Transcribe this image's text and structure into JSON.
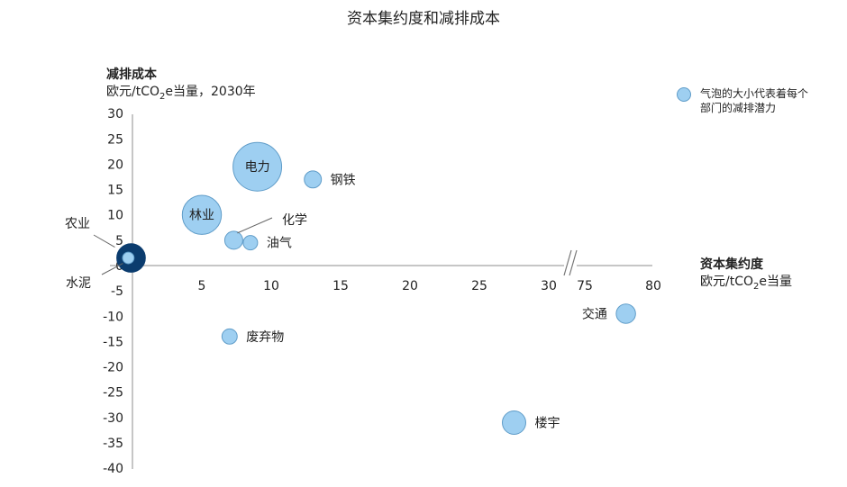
{
  "chart_data": {
    "type": "scatter",
    "title": "资本集约度和减排成本",
    "y_axis": {
      "title": "减排成本",
      "unit_prefix": "欧元/tCO",
      "unit_sub": "2",
      "unit_suffix": "e当量，2030年",
      "range": [
        -40,
        30
      ],
      "ticks": [
        30,
        25,
        20,
        15,
        10,
        5,
        0,
        -5,
        -10,
        -15,
        -20,
        -25,
        -30,
        -35,
        -40
      ],
      "tick_labels": [
        "30",
        "25",
        "20",
        "15",
        "10",
        "5",
        "0",
        "-5",
        "-10",
        "-15",
        "-20",
        "-25",
        "-30",
        "-35",
        "-40"
      ]
    },
    "x_axis": {
      "title": "资本集约度",
      "unit_prefix": "欧元/tCO",
      "unit_sub": "2",
      "unit_suffix": "e当量",
      "range": [
        0,
        80
      ],
      "break_between": [
        30,
        75
      ],
      "ticks": [
        5,
        10,
        15,
        20,
        25,
        30,
        75,
        80
      ],
      "tick_labels": [
        "5",
        "10",
        "15",
        "20",
        "25",
        "30",
        "75",
        "80"
      ]
    },
    "legend": {
      "text_line1": "气泡的大小代表着每个",
      "text_line2": "部门的减排潜力",
      "position": "top-right"
    },
    "bubbles": [
      {
        "label": "电力",
        "x": 9,
        "y": 19.5,
        "size": 2.84,
        "color": "#9ecff1",
        "label_placement": "inside"
      },
      {
        "label": "林业",
        "x": 5,
        "y": 10,
        "size": 1.84,
        "color": "#9ecff1",
        "label_placement": "inside"
      },
      {
        "label": "钢铁",
        "x": 13,
        "y": 17,
        "size": 0.35,
        "color": "#9ecff1",
        "label_placement": "right"
      },
      {
        "label": "化学",
        "x": 7.3,
        "y": 5,
        "size": 0.39,
        "color": "#9ecff1",
        "label_placement": "upper-right-leader"
      },
      {
        "label": "油气",
        "x": 8.5,
        "y": 4.5,
        "size": 0.25,
        "color": "#9ecff1",
        "label_placement": "right"
      },
      {
        "label": "农业",
        "x": -0.1,
        "y": 1.5,
        "size": 0.98,
        "color": "#0b3c6e",
        "label_placement": "upper-left-leader"
      },
      {
        "label": "水泥",
        "x": -0.3,
        "y": 1.5,
        "size": 0.16,
        "color": "#9ecff1",
        "label_placement": "lower-left-leader"
      },
      {
        "label": "废弃物",
        "x": 7,
        "y": -14,
        "size": 0.28,
        "color": "#9ecff1",
        "label_placement": "right"
      },
      {
        "label": "交通",
        "x": 78,
        "y": -9.5,
        "size": 0.45,
        "color": "#9ecff1",
        "label_placement": "left"
      },
      {
        "label": "楼宇",
        "x": 27.5,
        "y": -31,
        "size": 0.66,
        "color": "#9ecff1",
        "label_placement": "right"
      }
    ]
  }
}
